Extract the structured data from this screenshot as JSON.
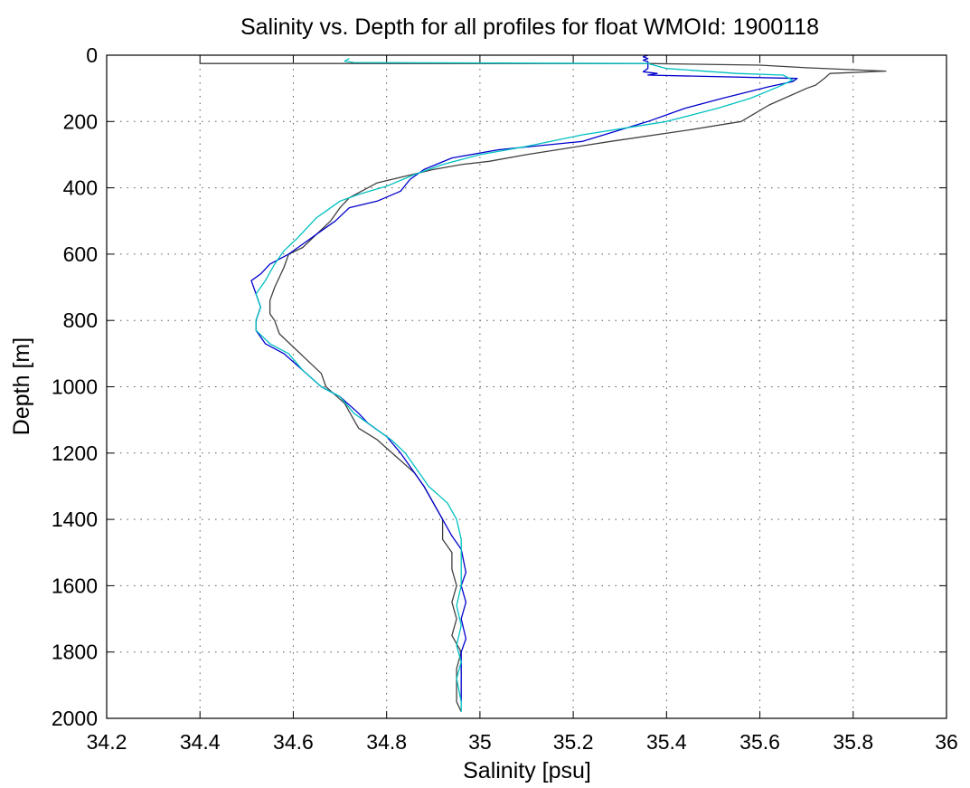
{
  "chart_data": {
    "type": "line",
    "title": "Salinity vs. Depth for all profiles for float WMOId: 1900118",
    "xlabel": "Salinity [psu]",
    "ylabel": "Depth [m]",
    "xlim": [
      34.2,
      36
    ],
    "ylim": [
      0,
      2000
    ],
    "y_reversed": true,
    "grid": true,
    "xticks": [
      "34.2",
      "34.4",
      "34.6",
      "34.8",
      "35",
      "35.2",
      "35.4",
      "35.6",
      "35.8",
      "36"
    ],
    "yticks": [
      "0",
      "200",
      "400",
      "600",
      "800",
      "1000",
      "1200",
      "1400",
      "1600",
      "1800",
      "2000"
    ],
    "series": [
      {
        "color": "#404040",
        "points": [
          [
            34.4,
            20
          ],
          [
            34.4,
            25
          ],
          [
            35.36,
            25
          ],
          [
            35.6,
            30
          ],
          [
            35.7,
            38
          ],
          [
            35.87,
            48
          ],
          [
            35.75,
            55
          ],
          [
            35.74,
            68
          ],
          [
            35.72,
            90
          ],
          [
            35.7,
            100
          ],
          [
            35.62,
            150
          ],
          [
            35.56,
            200
          ],
          [
            35.45,
            225
          ],
          [
            35.28,
            260
          ],
          [
            35.1,
            300
          ],
          [
            35.02,
            320
          ],
          [
            34.96,
            330
          ],
          [
            34.9,
            345
          ],
          [
            34.78,
            385
          ],
          [
            34.72,
            430
          ],
          [
            34.7,
            460
          ],
          [
            34.68,
            500
          ],
          [
            34.65,
            540
          ],
          [
            34.62,
            580
          ],
          [
            34.59,
            600
          ],
          [
            34.58,
            640
          ],
          [
            34.56,
            700
          ],
          [
            34.55,
            740
          ],
          [
            34.55,
            780
          ],
          [
            34.56,
            800
          ],
          [
            34.57,
            840
          ],
          [
            34.6,
            880
          ],
          [
            34.63,
            920
          ],
          [
            34.66,
            960
          ],
          [
            34.67,
            1000
          ],
          [
            34.71,
            1050
          ],
          [
            34.73,
            1100
          ],
          [
            34.74,
            1125
          ],
          [
            34.78,
            1160
          ],
          [
            34.82,
            1210
          ],
          [
            34.86,
            1260
          ],
          [
            34.88,
            1300
          ],
          [
            34.9,
            1350
          ],
          [
            34.92,
            1400
          ],
          [
            34.92,
            1460
          ],
          [
            34.94,
            1500
          ],
          [
            34.94,
            1550
          ],
          [
            34.95,
            1600
          ],
          [
            34.94,
            1650
          ],
          [
            34.95,
            1700
          ],
          [
            34.94,
            1750
          ],
          [
            34.96,
            1800
          ],
          [
            34.95,
            1850
          ],
          [
            34.95,
            1900
          ],
          [
            34.95,
            1950
          ],
          [
            34.96,
            1980
          ]
        ]
      },
      {
        "color": "#0000cc",
        "points": [
          [
            35.36,
            0
          ],
          [
            35.35,
            5
          ],
          [
            35.36,
            10
          ],
          [
            35.35,
            15
          ],
          [
            35.36,
            20
          ],
          [
            35.36,
            40
          ],
          [
            35.35,
            50
          ],
          [
            35.38,
            55
          ],
          [
            35.36,
            60
          ],
          [
            35.68,
            70
          ],
          [
            35.67,
            80
          ],
          [
            35.62,
            95
          ],
          [
            35.52,
            130
          ],
          [
            35.44,
            160
          ],
          [
            35.36,
            200
          ],
          [
            35.22,
            260
          ],
          [
            35.04,
            285
          ],
          [
            34.94,
            310
          ],
          [
            34.88,
            345
          ],
          [
            34.85,
            375
          ],
          [
            34.83,
            410
          ],
          [
            34.78,
            440
          ],
          [
            34.72,
            460
          ],
          [
            34.69,
            500
          ],
          [
            34.66,
            530
          ],
          [
            34.62,
            570
          ],
          [
            34.59,
            600
          ],
          [
            34.55,
            630
          ],
          [
            34.53,
            660
          ],
          [
            34.51,
            680
          ],
          [
            34.52,
            720
          ],
          [
            34.53,
            760
          ],
          [
            34.52,
            800
          ],
          [
            34.52,
            830
          ],
          [
            34.54,
            870
          ],
          [
            34.58,
            900
          ],
          [
            34.62,
            950
          ],
          [
            34.66,
            1000
          ],
          [
            34.7,
            1030
          ],
          [
            34.74,
            1080
          ],
          [
            34.76,
            1110
          ],
          [
            34.8,
            1150
          ],
          [
            34.83,
            1200
          ],
          [
            34.86,
            1260
          ],
          [
            34.88,
            1300
          ],
          [
            34.9,
            1350
          ],
          [
            34.92,
            1400
          ],
          [
            34.94,
            1450
          ],
          [
            34.96,
            1490
          ],
          [
            34.97,
            1560
          ],
          [
            34.96,
            1600
          ],
          [
            34.97,
            1650
          ],
          [
            34.96,
            1700
          ],
          [
            34.97,
            1760
          ],
          [
            34.96,
            1800
          ],
          [
            34.96,
            1860
          ],
          [
            34.96,
            1900
          ],
          [
            34.96,
            1950
          ]
        ]
      },
      {
        "color": "#00c0c0",
        "points": [
          [
            34.72,
            10
          ],
          [
            34.71,
            18
          ],
          [
            34.73,
            22
          ],
          [
            35.36,
            25
          ],
          [
            35.4,
            40
          ],
          [
            35.55,
            55
          ],
          [
            35.65,
            60
          ],
          [
            35.67,
            75
          ],
          [
            35.64,
            95
          ],
          [
            35.58,
            130
          ],
          [
            35.51,
            160
          ],
          [
            35.4,
            200
          ],
          [
            35.22,
            240
          ],
          [
            35.1,
            275
          ],
          [
            35.0,
            300
          ],
          [
            34.92,
            330
          ],
          [
            34.86,
            360
          ],
          [
            34.8,
            395
          ],
          [
            34.74,
            420
          ],
          [
            34.7,
            440
          ],
          [
            34.67,
            470
          ],
          [
            34.65,
            490
          ],
          [
            34.63,
            520
          ],
          [
            34.61,
            550
          ],
          [
            34.58,
            590
          ],
          [
            34.56,
            630
          ],
          [
            34.54,
            680
          ],
          [
            34.52,
            720
          ],
          [
            34.53,
            760
          ],
          [
            34.52,
            800
          ],
          [
            34.52,
            830
          ],
          [
            34.55,
            870
          ],
          [
            34.59,
            900
          ],
          [
            34.62,
            950
          ],
          [
            34.66,
            1000
          ],
          [
            34.7,
            1030
          ],
          [
            34.73,
            1080
          ],
          [
            34.77,
            1120
          ],
          [
            34.81,
            1160
          ],
          [
            34.84,
            1200
          ],
          [
            34.87,
            1260
          ],
          [
            34.89,
            1300
          ],
          [
            34.93,
            1350
          ],
          [
            34.95,
            1400
          ],
          [
            34.96,
            1460
          ],
          [
            34.96,
            1520
          ],
          [
            34.96,
            1600
          ],
          [
            34.95,
            1660
          ],
          [
            34.96,
            1720
          ],
          [
            34.95,
            1780
          ],
          [
            34.96,
            1830
          ],
          [
            34.95,
            1880
          ],
          [
            34.96,
            1950
          ],
          [
            34.96,
            1980
          ]
        ]
      }
    ]
  }
}
